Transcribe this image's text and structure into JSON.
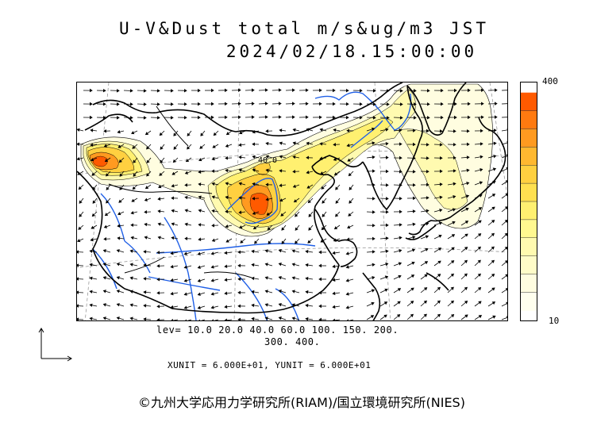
{
  "header": {
    "title": "U-V&Dust total m/s&ug/m3 JST",
    "datetime": "2024/02/18.15:00:00"
  },
  "colorbar": {
    "max_label": "400",
    "min_label": "10",
    "colors": [
      "#ff5a00",
      "#ff7a10",
      "#ff9a20",
      "#ffb830",
      "#ffd040",
      "#ffe050",
      "#fff070",
      "#fff890",
      "#fffab0",
      "#fffcc8",
      "#fffde0",
      "#ffffee"
    ]
  },
  "contour_levels": {
    "line1": "lev= 10.0 20.0 40.0 60.0 100. 150. 200.",
    "line2": "300. 400."
  },
  "map": {
    "contour_label": "40.0",
    "coastline_color": "#000000",
    "river_color": "#1f5fe6",
    "graticule_color": "#9a9a9a"
  },
  "units": "XUNIT = 6.000E+01, YUNIT = 6.000E+01",
  "copyright": "©九州大学応用力学研究所(RIAM)/国立環境研究所(NIES)"
}
